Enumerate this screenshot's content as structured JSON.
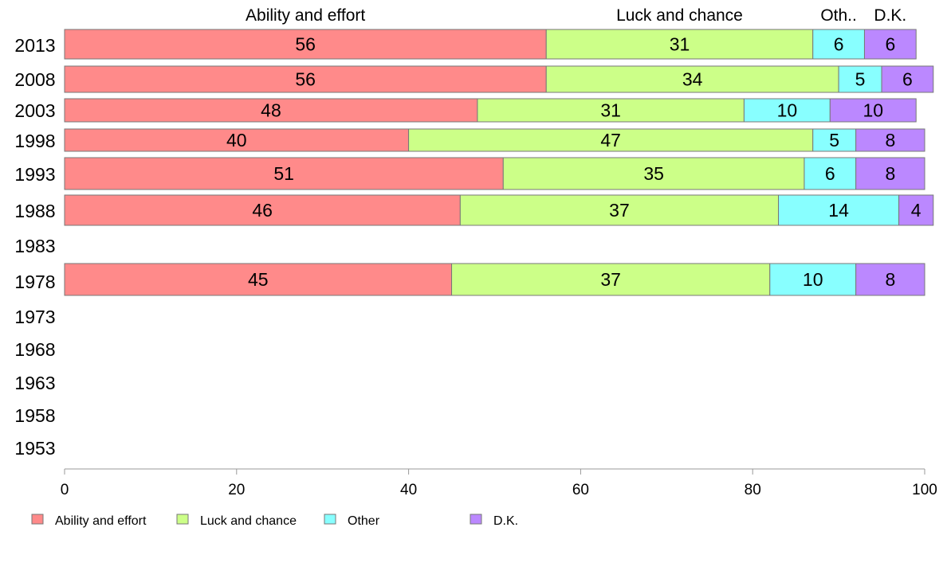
{
  "chart_data": {
    "type": "bar",
    "orientation": "horizontal",
    "stacked": true,
    "categories": [
      "2013",
      "2008",
      "2003",
      "1998",
      "1993",
      "1988",
      "1983",
      "1978",
      "1973",
      "1968",
      "1963",
      "1958",
      "1953"
    ],
    "series": [
      {
        "name": "Ability and effort",
        "color": "#ff8a8a",
        "values": [
          56,
          56,
          48,
          40,
          51,
          46,
          null,
          45,
          null,
          null,
          null,
          null,
          null
        ]
      },
      {
        "name": "Luck and chance",
        "color": "#ccff88",
        "values": [
          31,
          34,
          31,
          47,
          35,
          37,
          null,
          37,
          null,
          null,
          null,
          null,
          null
        ]
      },
      {
        "name": "Other",
        "color": "#88ffff",
        "values": [
          6,
          5,
          10,
          5,
          6,
          14,
          null,
          10,
          null,
          null,
          null,
          null,
          null
        ]
      },
      {
        "name": "D.K.",
        "color": "#bb88ff",
        "values": [
          6,
          6,
          10,
          8,
          8,
          4,
          null,
          8,
          null,
          null,
          null,
          null,
          null
        ]
      }
    ],
    "top_labels": [
      "Ability and effort",
      "Luck and chance",
      "Oth..",
      "D.K."
    ],
    "x_ticks": [
      0,
      20,
      40,
      60,
      80,
      100
    ],
    "xlim": [
      0,
      100
    ],
    "grid": false,
    "legend_position": "bottom-left"
  }
}
